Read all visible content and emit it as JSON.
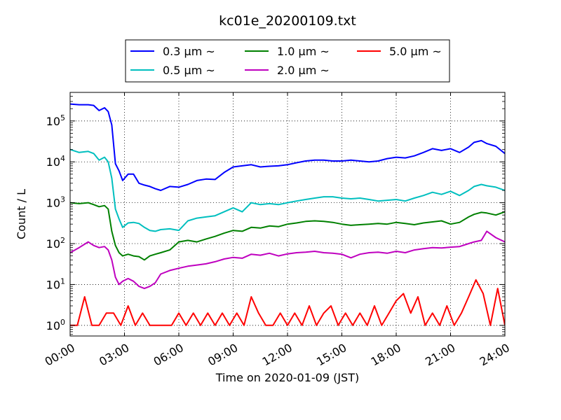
{
  "chart_data": {
    "type": "line",
    "title": "kc01e_20200109.txt",
    "xlabel": "Time on 2020-01-09 (JST)",
    "ylabel": "Count / L",
    "x_ticks": [
      "00:00",
      "03:00",
      "06:00",
      "09:00",
      "12:00",
      "15:00",
      "18:00",
      "21:00",
      "24:00"
    ],
    "xlim_hours": [
      0,
      24
    ],
    "y_scale": "log",
    "ylim": [
      0.55,
      500000
    ],
    "y_ticks": [
      {
        "base": "10",
        "exp": "0",
        "value": 1
      },
      {
        "base": "10",
        "exp": "1",
        "value": 10
      },
      {
        "base": "10",
        "exp": "2",
        "value": 100
      },
      {
        "base": "10",
        "exp": "3",
        "value": 1000
      },
      {
        "base": "10",
        "exp": "4",
        "value": 10000
      },
      {
        "base": "10",
        "exp": "5",
        "value": 100000
      }
    ],
    "grid": true,
    "legend_position": "top-center",
    "series": [
      {
        "name": "0.3 μm ~",
        "color": "#0000ff",
        "x": [
          0,
          0.5,
          1,
          1.3,
          1.6,
          1.9,
          2.1,
          2.3,
          2.5,
          2.7,
          2.9,
          3.2,
          3.5,
          3.8,
          4.1,
          4.4,
          4.7,
          5,
          5.5,
          6,
          6.5,
          7,
          7.5,
          8,
          8.5,
          9,
          9.5,
          10,
          10.5,
          11,
          11.5,
          12,
          12.5,
          13,
          13.5,
          14,
          14.5,
          15,
          15.5,
          16,
          16.5,
          17,
          17.5,
          18,
          18.5,
          19,
          19.5,
          20,
          20.5,
          21,
          21.5,
          22,
          22.3,
          22.7,
          23,
          23.5,
          24
        ],
        "values": [
          260000,
          250000,
          250000,
          240000,
          180000,
          210000,
          170000,
          80000,
          9000,
          6000,
          3500,
          5000,
          5000,
          3000,
          2700,
          2500,
          2200,
          2000,
          2500,
          2400,
          2800,
          3500,
          3800,
          3700,
          5500,
          7500,
          8000,
          8500,
          7500,
          7800,
          8000,
          8500,
          9500,
          10500,
          11000,
          11000,
          10500,
          10500,
          11000,
          10500,
          10000,
          10500,
          12000,
          13000,
          12500,
          14000,
          17000,
          21000,
          19000,
          21000,
          17000,
          23000,
          30000,
          33000,
          28000,
          24000,
          16000
        ]
      },
      {
        "name": "0.5 μm ~",
        "color": "#00bfbf",
        "x": [
          0,
          0.5,
          1,
          1.3,
          1.6,
          1.9,
          2.1,
          2.3,
          2.5,
          2.7,
          2.9,
          3.2,
          3.5,
          3.8,
          4.1,
          4.4,
          4.7,
          5,
          5.5,
          6,
          6.5,
          7,
          7.5,
          8,
          8.5,
          9,
          9.5,
          10,
          10.5,
          11,
          11.5,
          12,
          12.5,
          13,
          13.5,
          14,
          14.5,
          15,
          15.5,
          16,
          16.5,
          17,
          17.5,
          18,
          18.5,
          19,
          19.5,
          20,
          20.5,
          21,
          21.5,
          22,
          22.3,
          22.7,
          23,
          23.5,
          24
        ],
        "values": [
          20000,
          17000,
          18000,
          16000,
          11000,
          13000,
          10000,
          4000,
          700,
          400,
          250,
          320,
          330,
          310,
          250,
          210,
          200,
          220,
          230,
          210,
          360,
          420,
          450,
          480,
          600,
          750,
          600,
          1000,
          900,
          950,
          900,
          1000,
          1100,
          1200,
          1300,
          1400,
          1400,
          1300,
          1250,
          1300,
          1200,
          1100,
          1150,
          1200,
          1100,
          1300,
          1500,
          1800,
          1600,
          1900,
          1500,
          2000,
          2500,
          2800,
          2600,
          2400,
          2000
        ]
      },
      {
        "name": "1.0 μm ~",
        "color": "#008000",
        "x": [
          0,
          0.5,
          1,
          1.3,
          1.6,
          1.9,
          2.1,
          2.3,
          2.5,
          2.7,
          2.9,
          3.2,
          3.5,
          3.8,
          4.1,
          4.4,
          4.7,
          5,
          5.5,
          6,
          6.5,
          7,
          7.5,
          8,
          8.5,
          9,
          9.5,
          10,
          10.5,
          11,
          11.5,
          12,
          12.5,
          13,
          13.5,
          14,
          14.5,
          15,
          15.5,
          16,
          16.5,
          17,
          17.5,
          18,
          18.5,
          19,
          19.5,
          20,
          20.5,
          21,
          21.5,
          22,
          22.3,
          22.7,
          23,
          23.5,
          24
        ],
        "values": [
          1000,
          950,
          1000,
          900,
          800,
          850,
          700,
          200,
          90,
          60,
          50,
          55,
          50,
          48,
          40,
          50,
          55,
          60,
          70,
          110,
          120,
          110,
          130,
          150,
          180,
          210,
          200,
          250,
          240,
          270,
          260,
          300,
          320,
          350,
          360,
          350,
          330,
          300,
          280,
          290,
          300,
          310,
          300,
          330,
          310,
          290,
          320,
          340,
          360,
          300,
          330,
          450,
          520,
          580,
          560,
          500,
          600
        ]
      },
      {
        "name": "2.0 μm ~",
        "color": "#bf00bf",
        "x": [
          0,
          0.5,
          1,
          1.3,
          1.6,
          1.9,
          2.1,
          2.3,
          2.5,
          2.7,
          2.9,
          3.2,
          3.5,
          3.8,
          4.1,
          4.4,
          4.7,
          5,
          5.5,
          6,
          6.5,
          7,
          7.5,
          8,
          8.5,
          9,
          9.5,
          10,
          10.5,
          11,
          11.5,
          12,
          12.5,
          13,
          13.5,
          14,
          14.5,
          15,
          15.5,
          16,
          16.5,
          17,
          17.5,
          18,
          18.5,
          19,
          19.5,
          20,
          20.5,
          21,
          21.5,
          22,
          22.3,
          22.7,
          23,
          23.5,
          24
        ],
        "values": [
          60,
          80,
          110,
          90,
          80,
          85,
          70,
          40,
          15,
          10,
          12,
          14,
          12,
          9,
          8,
          9,
          11,
          18,
          22,
          25,
          28,
          30,
          32,
          36,
          42,
          46,
          44,
          55,
          52,
          58,
          50,
          56,
          60,
          62,
          65,
          60,
          58,
          55,
          45,
          55,
          60,
          62,
          58,
          65,
          60,
          70,
          75,
          80,
          78,
          82,
          85,
          100,
          110,
          120,
          200,
          140,
          110
        ]
      },
      {
        "name": "5.0 μm ~",
        "color": "#ff0000",
        "x": [
          0,
          0.4,
          0.8,
          1.2,
          1.6,
          2,
          2.4,
          2.8,
          3.2,
          3.6,
          4,
          4.4,
          4.8,
          5.2,
          5.6,
          6,
          6.4,
          6.8,
          7.2,
          7.6,
          8,
          8.4,
          8.8,
          9.2,
          9.6,
          10,
          10.4,
          10.8,
          11.2,
          11.6,
          12,
          12.4,
          12.8,
          13.2,
          13.6,
          14,
          14.4,
          14.8,
          15.2,
          15.6,
          16,
          16.4,
          16.8,
          17.2,
          17.6,
          18,
          18.4,
          18.8,
          19.2,
          19.6,
          20,
          20.4,
          20.8,
          21.2,
          21.6,
          22,
          22.4,
          22.8,
          23.2,
          23.6,
          24
        ],
        "values": [
          1,
          1,
          5,
          1,
          1,
          2,
          2,
          1,
          3,
          1,
          2,
          1,
          1,
          1,
          1,
          2,
          1,
          2,
          1,
          2,
          1,
          2,
          1,
          2,
          1,
          5,
          2,
          1,
          1,
          2,
          1,
          2,
          1,
          3,
          1,
          2,
          3,
          1,
          2,
          1,
          2,
          1,
          3,
          1,
          2,
          4,
          6,
          2,
          5,
          1,
          2,
          1,
          3,
          1,
          2,
          5,
          13,
          6,
          1,
          8,
          1
        ]
      }
    ]
  }
}
